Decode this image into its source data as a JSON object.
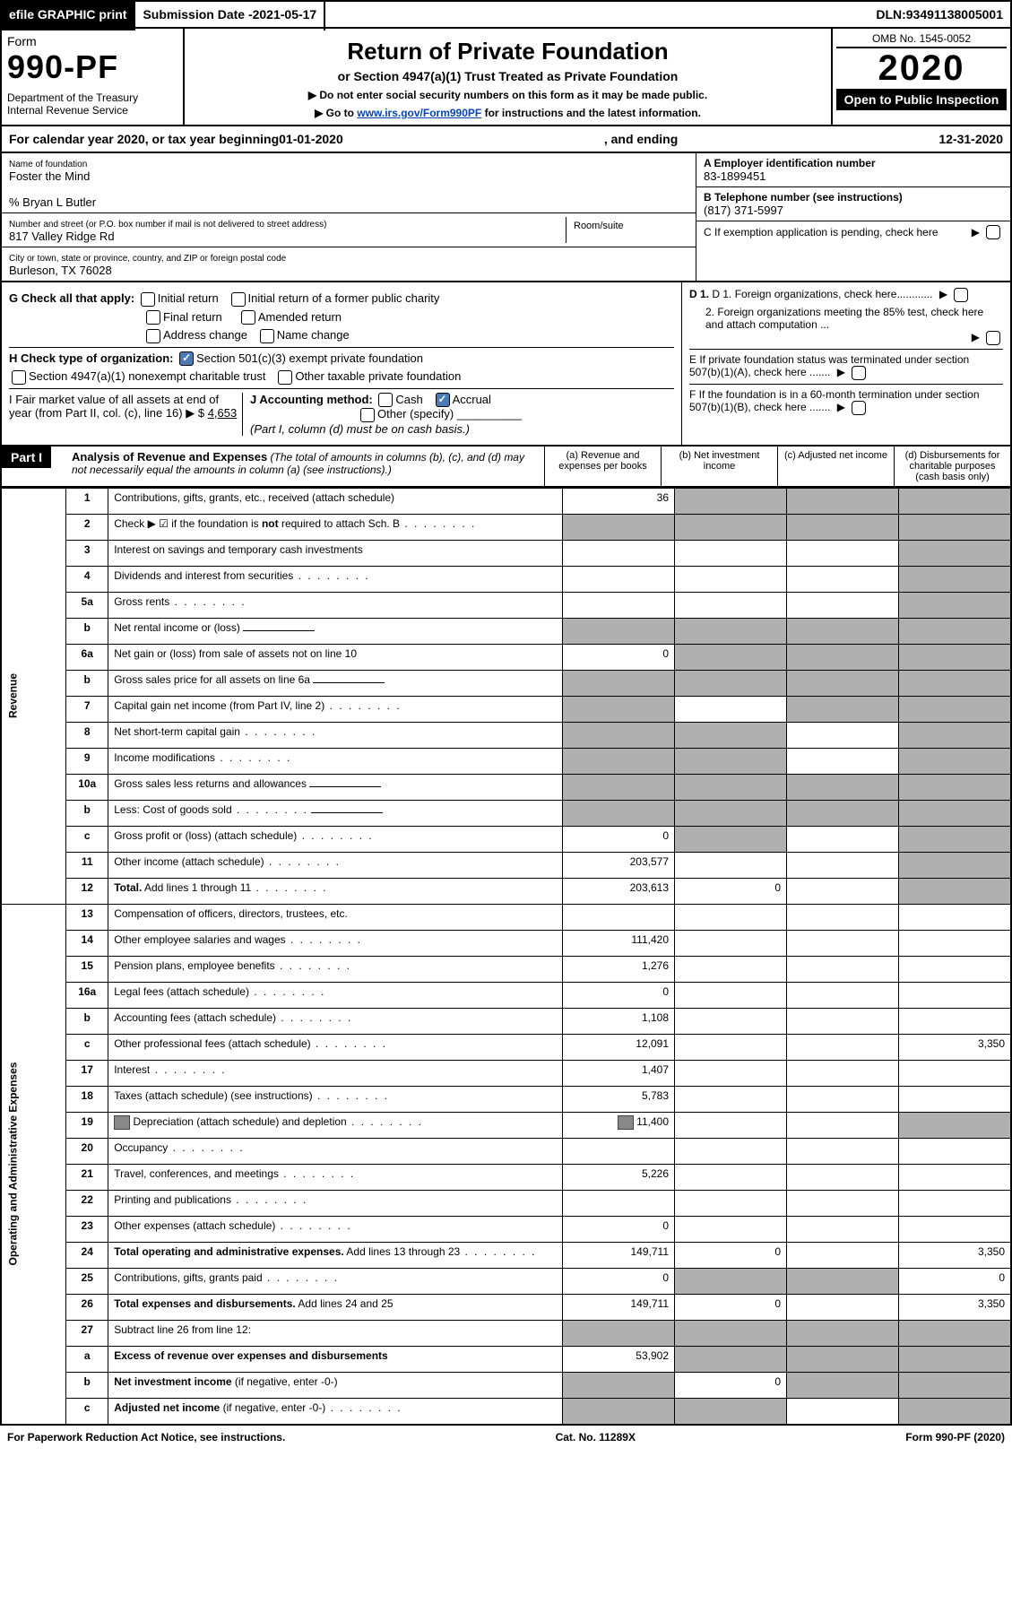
{
  "topbar": {
    "efile": "efile GRAPHIC print",
    "subdate_lbl": "Submission Date - ",
    "subdate": "2021-05-17",
    "dln_lbl": "DLN: ",
    "dln": "93491138005001"
  },
  "header": {
    "form": "Form",
    "formnum": "990-PF",
    "dept": "Department of the Treasury\nInternal Revenue Service",
    "title": "Return of Private Foundation",
    "subtitle": "or Section 4947(a)(1) Trust Treated as Private Foundation",
    "inst1": "▶ Do not enter social security numbers on this form as it may be made public.",
    "inst2": "▶ Go to ",
    "instlink": "www.irs.gov/Form990PF",
    "inst2b": " for instructions and the latest information.",
    "omb": "OMB No. 1545-0052",
    "year": "2020",
    "open": "Open to Public Inspection"
  },
  "cal": {
    "a": "For calendar year 2020, or tax year beginning ",
    "begin": "01-01-2020",
    "b": ", and ending ",
    "end": "12-31-2020"
  },
  "info": {
    "name_lbl": "Name of foundation",
    "name": "Foster the Mind",
    "care": "% Bryan L Butler",
    "addr_lbl": "Number and street (or P.O. box number if mail is not delivered to street address)",
    "addr": "817 Valley Ridge Rd",
    "room_lbl": "Room/suite",
    "city_lbl": "City or town, state or province, country, and ZIP or foreign postal code",
    "city": "Burleson, TX  76028",
    "ein_lbl": "A Employer identification number",
    "ein": "83-1899451",
    "tel_lbl": "B Telephone number (see instructions)",
    "tel": "(817) 371-5997",
    "c_lbl": "C If exemption application is pending, check here",
    "d1": "D 1. Foreign organizations, check here............",
    "d2": "2. Foreign organizations meeting the 85% test, check here and attach computation ...",
    "e": "E  If private foundation status was terminated under section 507(b)(1)(A), check here .......",
    "f": "F  If the foundation is in a 60-month termination under section 507(b)(1)(B), check here ......."
  },
  "g": {
    "lbl": "G Check all that apply:",
    "o1": "Initial return",
    "o2": "Initial return of a former public charity",
    "o3": "Final return",
    "o4": "Amended return",
    "o5": "Address change",
    "o6": "Name change"
  },
  "h": {
    "lbl": "H Check type of organization:",
    "o1": "Section 501(c)(3) exempt private foundation",
    "o2": "Section 4947(a)(1) nonexempt charitable trust",
    "o3": "Other taxable private foundation"
  },
  "i": {
    "lbl": "I Fair market value of all assets at end of year (from Part II, col. (c), line 16) ▶ $",
    "val": "4,653"
  },
  "j": {
    "lbl": "J Accounting method:",
    "o1": "Cash",
    "o2": "Accrual",
    "o3": "Other (specify)",
    "note": "(Part I, column (d) must be on cash basis.)"
  },
  "part1": {
    "badge": "Part I",
    "title": "Analysis of Revenue and Expenses",
    "note": "(The total of amounts in columns (b), (c), and (d) may not necessarily equal the amounts in column (a) (see instructions).)",
    "ca": "(a)   Revenue and expenses per books",
    "cb": "(b)   Net investment income",
    "cc": "(c)   Adjusted net income",
    "cd": "(d)   Disbursements for charitable purposes (cash basis only)"
  },
  "sections": {
    "rev": "Revenue",
    "exp": "Operating and Administrative Expenses"
  },
  "rows": [
    {
      "n": "1",
      "t": "Contributions, gifts, grants, etc., received (attach schedule)",
      "a": "36",
      "shade_b": true,
      "shade_c": true,
      "shade_d": true
    },
    {
      "n": "2",
      "t": "Check ▶ ☑ if the foundation is <b>not</b> required to attach Sch. B",
      "dots": true,
      "shade_a": true,
      "shade_b": true,
      "shade_c": true,
      "shade_d": true
    },
    {
      "n": "3",
      "t": "Interest on savings and temporary cash investments",
      "shade_d": true
    },
    {
      "n": "4",
      "t": "Dividends and interest from securities",
      "dots": true,
      "shade_d": true
    },
    {
      "n": "5a",
      "t": "Gross rents",
      "dots": true,
      "shade_d": true
    },
    {
      "n": "b",
      "t": "Net rental income or (loss)",
      "shade_a": true,
      "shade_b": true,
      "shade_c": true,
      "shade_d": true,
      "inset": true
    },
    {
      "n": "6a",
      "t": "Net gain or (loss) from sale of assets not on line 10",
      "a": "0",
      "shade_b": true,
      "shade_c": true,
      "shade_d": true
    },
    {
      "n": "b",
      "t": "Gross sales price for all assets on line 6a",
      "shade_a": true,
      "shade_b": true,
      "shade_c": true,
      "shade_d": true,
      "inset": true
    },
    {
      "n": "7",
      "t": "Capital gain net income (from Part IV, line 2)",
      "dots": true,
      "shade_a": true,
      "shade_c": true,
      "shade_d": true
    },
    {
      "n": "8",
      "t": "Net short-term capital gain",
      "dots": true,
      "shade_a": true,
      "shade_b": true,
      "shade_d": true
    },
    {
      "n": "9",
      "t": "Income modifications",
      "dots": true,
      "shade_a": true,
      "shade_b": true,
      "shade_d": true
    },
    {
      "n": "10a",
      "t": "Gross sales less returns and allowances",
      "shade_a": true,
      "shade_b": true,
      "shade_c": true,
      "shade_d": true,
      "inset": true
    },
    {
      "n": "b",
      "t": "Less: Cost of goods sold",
      "dots": true,
      "shade_a": true,
      "shade_b": true,
      "shade_c": true,
      "shade_d": true,
      "inset": true
    },
    {
      "n": "c",
      "t": "Gross profit or (loss) (attach schedule)",
      "dots": true,
      "a": "0",
      "shade_b": true,
      "shade_d": true
    },
    {
      "n": "11",
      "t": "Other income (attach schedule)",
      "dots": true,
      "a": "203,577",
      "shade_d": true
    },
    {
      "n": "12",
      "t": "<b>Total.</b> Add lines 1 through 11",
      "dots": true,
      "a": "203,613",
      "b": "0",
      "shade_d": true,
      "bold": true
    },
    {
      "n": "13",
      "t": "Compensation of officers, directors, trustees, etc.",
      "sec": "exp"
    },
    {
      "n": "14",
      "t": "Other employee salaries and wages",
      "dots": true,
      "a": "111,420"
    },
    {
      "n": "15",
      "t": "Pension plans, employee benefits",
      "dots": true,
      "a": "1,276"
    },
    {
      "n": "16a",
      "t": "Legal fees (attach schedule)",
      "dots": true,
      "a": "0"
    },
    {
      "n": "b",
      "t": "Accounting fees (attach schedule)",
      "dots": true,
      "a": "1,108"
    },
    {
      "n": "c",
      "t": "Other professional fees (attach schedule)",
      "dots": true,
      "a": "12,091",
      "d": "3,350"
    },
    {
      "n": "17",
      "t": "Interest",
      "dots": true,
      "a": "1,407"
    },
    {
      "n": "18",
      "t": "Taxes (attach schedule) (see instructions)",
      "dots": true,
      "a": "5,783"
    },
    {
      "n": "19",
      "t": "Depreciation (attach schedule) and depletion",
      "dots": true,
      "a": "11,400",
      "icon": true,
      "shade_d": true
    },
    {
      "n": "20",
      "t": "Occupancy",
      "dots": true
    },
    {
      "n": "21",
      "t": "Travel, conferences, and meetings",
      "dots": true,
      "a": "5,226"
    },
    {
      "n": "22",
      "t": "Printing and publications",
      "dots": true
    },
    {
      "n": "23",
      "t": "Other expenses (attach schedule)",
      "dots": true,
      "a": "0"
    },
    {
      "n": "24",
      "t": "<b>Total operating and administrative expenses.</b> Add lines 13 through 23",
      "dots": true,
      "a": "149,711",
      "b": "0",
      "d": "3,350"
    },
    {
      "n": "25",
      "t": "Contributions, gifts, grants paid",
      "dots": true,
      "a": "0",
      "shade_b": true,
      "shade_c": true,
      "d": "0"
    },
    {
      "n": "26",
      "t": "<b>Total expenses and disbursements.</b> Add lines 24 and 25",
      "a": "149,711",
      "b": "0",
      "d": "3,350"
    },
    {
      "n": "27",
      "t": "Subtract line 26 from line 12:",
      "shade_a": true,
      "shade_b": true,
      "shade_c": true,
      "shade_d": true
    },
    {
      "n": "a",
      "t": "<b>Excess of revenue over expenses and disbursements</b>",
      "a": "53,902",
      "shade_b": true,
      "shade_c": true,
      "shade_d": true
    },
    {
      "n": "b",
      "t": "<b>Net investment income</b> (if negative, enter -0-)",
      "shade_a": true,
      "b": "0",
      "shade_c": true,
      "shade_d": true
    },
    {
      "n": "c",
      "t": "<b>Adjusted net income</b> (if negative, enter -0-)",
      "dots": true,
      "shade_a": true,
      "shade_b": true,
      "shade_d": true
    }
  ],
  "footer": {
    "l": "For Paperwork Reduction Act Notice, see instructions.",
    "m": "Cat. No. 11289X",
    "r": "Form 990-PF (2020)"
  }
}
